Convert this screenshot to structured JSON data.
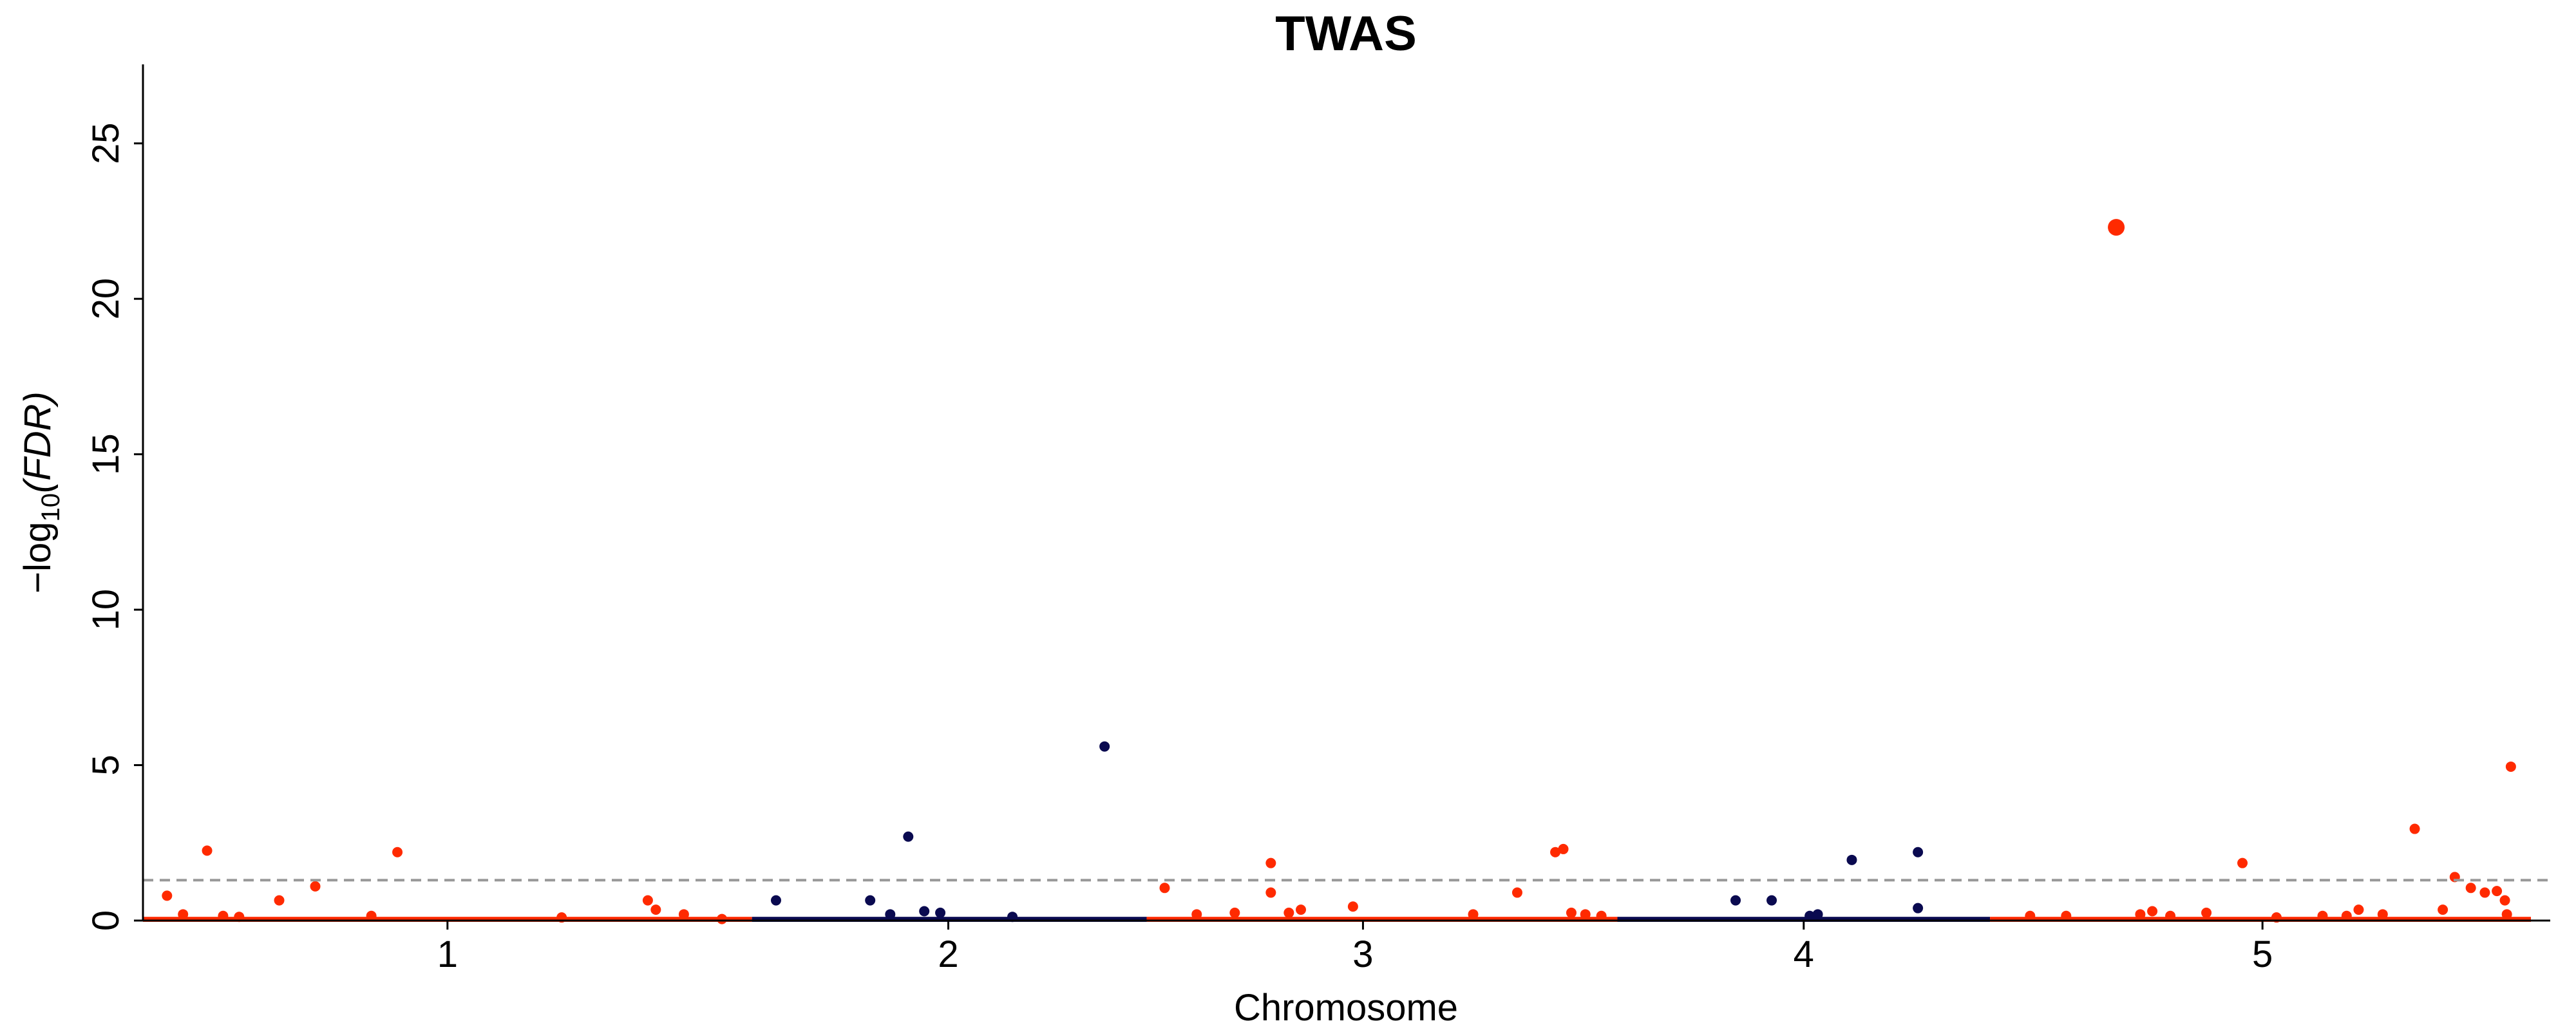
{
  "chart_data": {
    "type": "scatter",
    "title": "TWAS",
    "xlabel": "Chromosome",
    "ylabel_prefix": "−log",
    "ylabel_sub": "10",
    "ylabel_arg": "(FDR)",
    "ylim": [
      0,
      27.5
    ],
    "yticks": [
      0,
      5,
      10,
      15,
      20,
      25
    ],
    "threshold": 1.3,
    "grid": false,
    "legend": "none",
    "colors": {
      "odd": "#ff2a00",
      "even": "#0a0a50",
      "threshold": "#999999"
    },
    "chromosomes": [
      {
        "label": "1",
        "start": 0.0,
        "end": 30.4,
        "center": 15.2
      },
      {
        "label": "2",
        "start": 30.4,
        "end": 50.1,
        "center": 40.2
      },
      {
        "label": "3",
        "start": 50.1,
        "end": 73.6,
        "center": 60.9
      },
      {
        "label": "4",
        "start": 73.6,
        "end": 92.2,
        "center": 82.9
      },
      {
        "label": "5",
        "start": 92.2,
        "end": 119.2,
        "center": 105.8
      }
    ],
    "points": [
      [
        1.2,
        0.8
      ],
      [
        2.0,
        0.2
      ],
      [
        3.2,
        2.25
      ],
      [
        4.0,
        0.15
      ],
      [
        4.8,
        0.12
      ],
      [
        6.8,
        0.65
      ],
      [
        8.6,
        1.1
      ],
      [
        11.4,
        0.15
      ],
      [
        12.7,
        2.2
      ],
      [
        20.9,
        0.1
      ],
      [
        25.2,
        0.65
      ],
      [
        25.6,
        0.35
      ],
      [
        27.0,
        0.2
      ],
      [
        28.9,
        0.05
      ],
      [
        31.6,
        0.65
      ],
      [
        36.3,
        0.65
      ],
      [
        37.3,
        0.2
      ],
      [
        38.2,
        2.7
      ],
      [
        39.0,
        0.3
      ],
      [
        39.8,
        0.25
      ],
      [
        43.4,
        0.12
      ],
      [
        48.0,
        5.6
      ],
      [
        51.0,
        1.05
      ],
      [
        52.6,
        0.2
      ],
      [
        54.5,
        0.25
      ],
      [
        56.3,
        1.85
      ],
      [
        56.3,
        0.9
      ],
      [
        57.2,
        0.25
      ],
      [
        57.8,
        0.35
      ],
      [
        60.4,
        0.45
      ],
      [
        66.4,
        0.2
      ],
      [
        68.6,
        0.9
      ],
      [
        70.5,
        2.2
      ],
      [
        70.9,
        2.3
      ],
      [
        71.3,
        0.25
      ],
      [
        72.0,
        0.2
      ],
      [
        72.8,
        0.15
      ],
      [
        79.5,
        0.65
      ],
      [
        81.3,
        0.65
      ],
      [
        83.2,
        0.15
      ],
      [
        83.6,
        0.2
      ],
      [
        85.3,
        1.95
      ],
      [
        88.6,
        2.2
      ],
      [
        88.6,
        0.4
      ],
      [
        94.2,
        0.15
      ],
      [
        96.0,
        0.15
      ],
      [
        98.5,
        22.3
      ],
      [
        99.7,
        0.2
      ],
      [
        100.3,
        0.3
      ],
      [
        101.2,
        0.15
      ],
      [
        103.0,
        0.25
      ],
      [
        104.8,
        1.85
      ],
      [
        106.5,
        0.1
      ],
      [
        108.8,
        0.15
      ],
      [
        110.0,
        0.15
      ],
      [
        110.6,
        0.35
      ],
      [
        111.8,
        0.2
      ],
      [
        113.4,
        2.95
      ],
      [
        114.8,
        0.35
      ],
      [
        115.4,
        1.4
      ],
      [
        116.2,
        1.05
      ],
      [
        116.9,
        0.9
      ],
      [
        117.5,
        0.95
      ],
      [
        117.9,
        0.65
      ],
      [
        118.2,
        4.95
      ],
      [
        118.0,
        0.2
      ]
    ]
  }
}
